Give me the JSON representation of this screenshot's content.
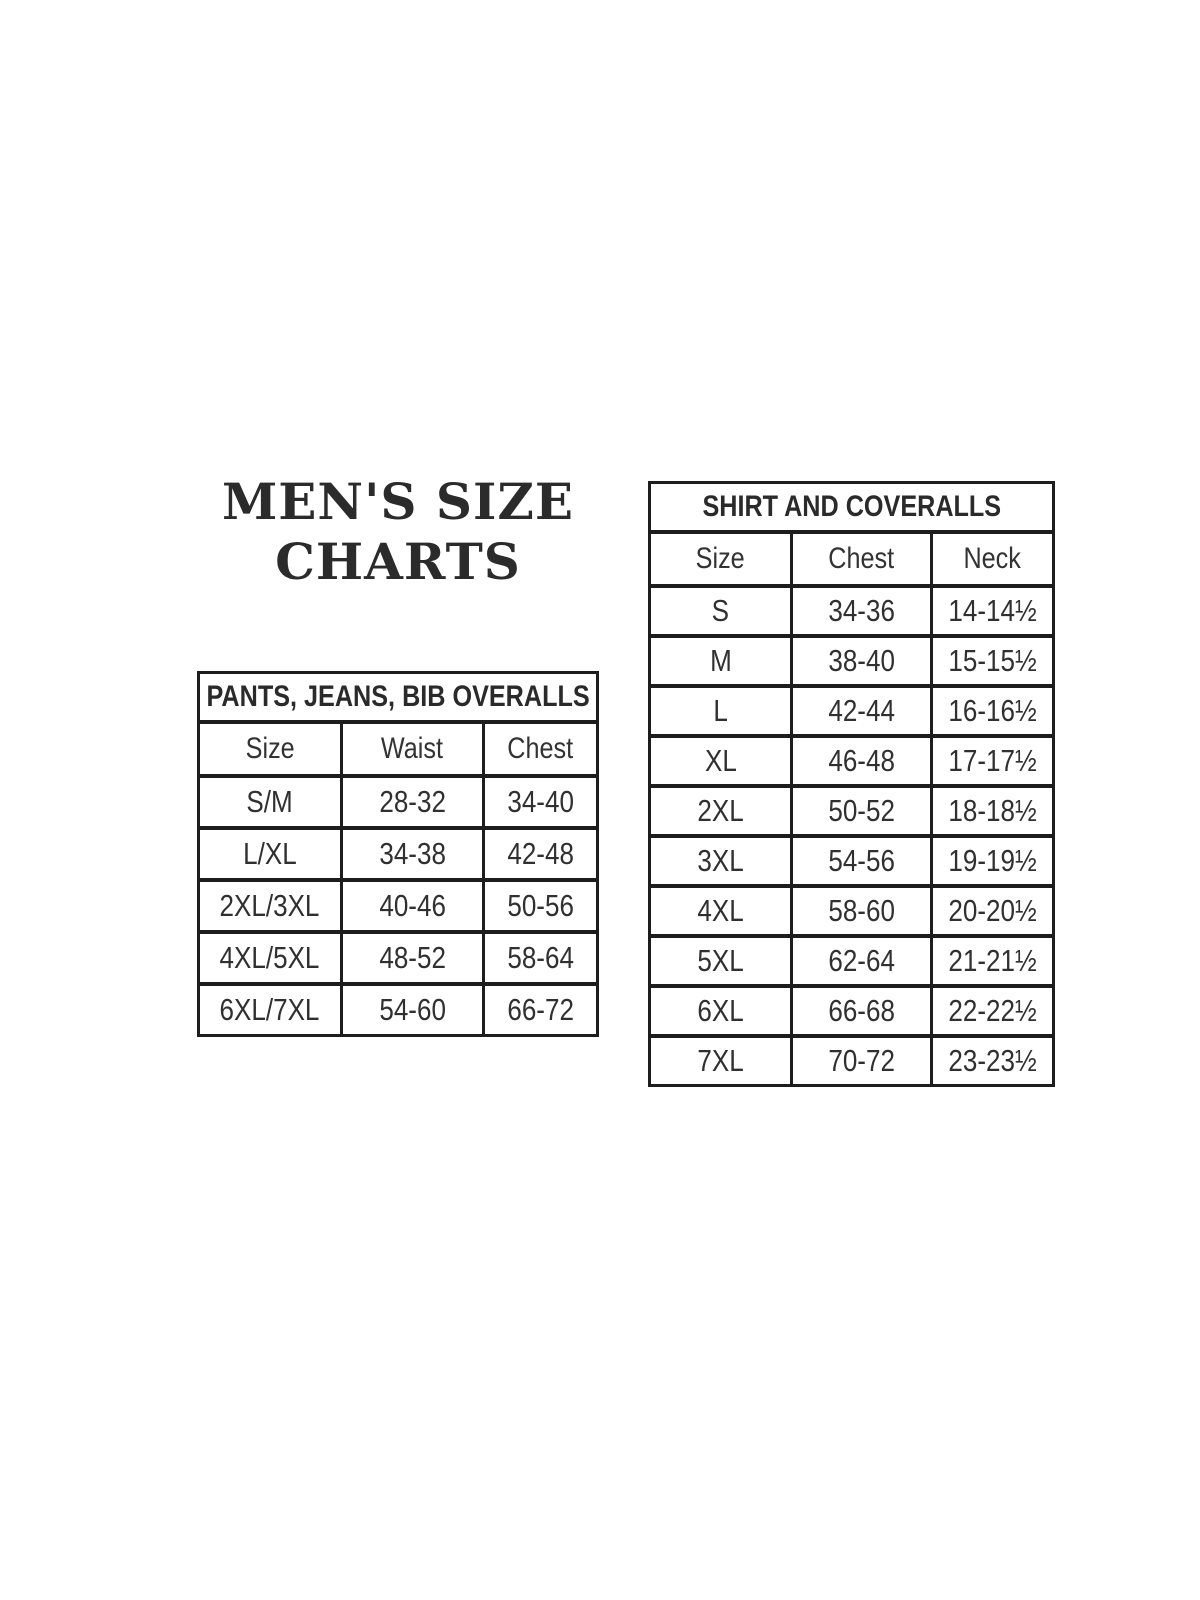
{
  "title": {
    "line1": "MEN'S SIZE",
    "line2": "CHARTS"
  },
  "colors": {
    "background": "#ffffff",
    "text": "#2e2e2e",
    "border": "#1d1d1d"
  },
  "pants_table": {
    "title": "PANTS, JEANS, BIB OVERALLS",
    "columns": {
      "size": "Size",
      "waist": "Waist",
      "chest": "Chest"
    },
    "rows": [
      {
        "size": "S/M",
        "waist": "28-32",
        "chest": "34-40"
      },
      {
        "size": "L/XL",
        "waist": "34-38",
        "chest": "42-48"
      },
      {
        "size": "2XL/3XL",
        "waist": "40-46",
        "chest": "50-56"
      },
      {
        "size": "4XL/5XL",
        "waist": "48-52",
        "chest": "58-64"
      },
      {
        "size": "6XL/7XL",
        "waist": "54-60",
        "chest": "66-72"
      }
    ]
  },
  "shirt_table": {
    "title": "SHIRT AND COVERALLS",
    "columns": {
      "size": "Size",
      "chest": "Chest",
      "neck": "Neck"
    },
    "rows": [
      {
        "size": "S",
        "chest": "34-36",
        "neck": "14-14½"
      },
      {
        "size": "M",
        "chest": "38-40",
        "neck": "15-15½"
      },
      {
        "size": "L",
        "chest": "42-44",
        "neck": "16-16½"
      },
      {
        "size": "XL",
        "chest": "46-48",
        "neck": "17-17½"
      },
      {
        "size": "2XL",
        "chest": "50-52",
        "neck": "18-18½"
      },
      {
        "size": "3XL",
        "chest": "54-56",
        "neck": "19-19½"
      },
      {
        "size": "4XL",
        "chest": "58-60",
        "neck": "20-20½"
      },
      {
        "size": "5XL",
        "chest": "62-64",
        "neck": "21-21½"
      },
      {
        "size": "6XL",
        "chest": "66-68",
        "neck": "22-22½"
      },
      {
        "size": "7XL",
        "chest": "70-72",
        "neck": "23-23½"
      }
    ]
  }
}
